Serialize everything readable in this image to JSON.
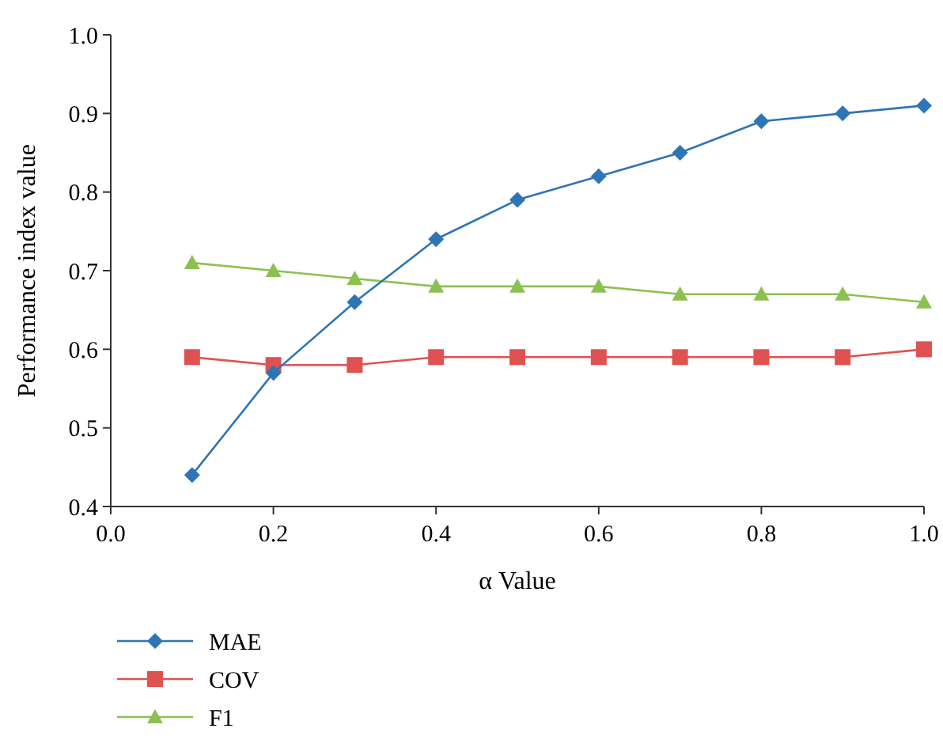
{
  "chart_data": {
    "type": "line",
    "xlabel": "α Value",
    "ylabel": "Performance index value",
    "x": [
      0.1,
      0.2,
      0.3,
      0.4,
      0.5,
      0.6,
      0.7,
      0.8,
      0.9,
      1.0
    ],
    "xlim": [
      0,
      1
    ],
    "xticks": [
      {
        "value": 0,
        "label": "0.0"
      },
      0.2,
      0.4,
      0.6,
      0.8,
      {
        "value": 1,
        "label": "1.0"
      }
    ],
    "ylim": [
      0.4,
      1
    ],
    "yticks": [
      0.4,
      0.5,
      0.6,
      0.7,
      0.8,
      0.9,
      {
        "value": 1,
        "label": "1.0"
      }
    ],
    "grid": false,
    "legend": "bottom left",
    "series": [
      {
        "name": "MAE",
        "color": "#2e75b6",
        "marker": "diamond",
        "values": [
          0.44,
          0.57,
          0.66,
          0.74,
          0.79,
          0.82,
          0.85,
          0.89,
          0.9,
          0.91
        ]
      },
      {
        "name": "COV",
        "color": "#e05252",
        "marker": "square",
        "values": [
          0.59,
          0.58,
          0.58,
          0.59,
          0.59,
          0.59,
          0.59,
          0.59,
          0.59,
          0.6
        ]
      },
      {
        "name": "F1",
        "color": "#8cc152",
        "marker": "triangle",
        "values": [
          0.71,
          0.7,
          0.69,
          0.68,
          0.68,
          0.68,
          0.67,
          0.67,
          0.67,
          0.66
        ]
      }
    ]
  }
}
